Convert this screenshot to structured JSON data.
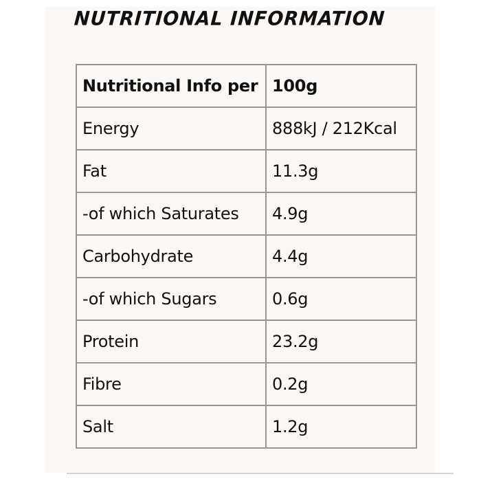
{
  "title": "NUTRITIONAL INFORMATION",
  "table": {
    "header": {
      "label": "Nutritional Info per",
      "value": "100g"
    },
    "rows": [
      {
        "label": "Energy",
        "value": "888kJ / 212Kcal"
      },
      {
        "label": "Fat",
        "value": "11.3g"
      },
      {
        "label": "-of which Saturates",
        "value": "4.9g"
      },
      {
        "label": "Carbohydrate",
        "value": "4.4g"
      },
      {
        "label": "-of which Sugars",
        "value": "0.6g"
      },
      {
        "label": "Protein",
        "value": "23.2g"
      },
      {
        "label": "Fibre",
        "value": "0.2g"
      },
      {
        "label": "Salt",
        "value": "1.2g"
      }
    ]
  },
  "colors": {
    "panel_background": "#fcf8f5",
    "border": "#999592",
    "text": "#111111"
  }
}
